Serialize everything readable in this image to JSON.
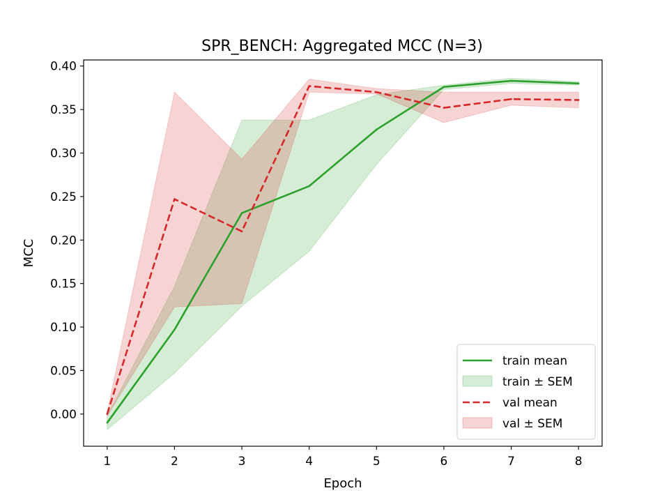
{
  "chart_data": {
    "type": "line",
    "title": "SPR_BENCH: Aggregated MCC (N=3)",
    "xlabel": "Epoch",
    "ylabel": "MCC",
    "x": [
      1,
      2,
      3,
      4,
      5,
      6,
      7,
      8
    ],
    "xlim": [
      0.65,
      8.35
    ],
    "ylim": [
      -0.037,
      0.407
    ],
    "x_ticks": [
      "1",
      "2",
      "3",
      "4",
      "5",
      "6",
      "7",
      "8"
    ],
    "y_ticks": [
      "0.00",
      "0.05",
      "0.10",
      "0.15",
      "0.20",
      "0.25",
      "0.30",
      "0.35",
      "0.40"
    ],
    "grid": false,
    "legend_position": "lower-right",
    "series": [
      {
        "name": "train mean",
        "band_name": "train ± SEM",
        "color": "#2ca02c",
        "line_style": "solid",
        "values": [
          -0.01,
          0.097,
          0.231,
          0.262,
          0.327,
          0.376,
          0.383,
          0.38
        ],
        "lower": [
          -0.018,
          0.047,
          0.124,
          0.187,
          0.287,
          0.373,
          0.38,
          0.378
        ],
        "upper": [
          -0.002,
          0.147,
          0.338,
          0.338,
          0.367,
          0.378,
          0.386,
          0.382
        ]
      },
      {
        "name": "val mean",
        "band_name": "val ± SEM",
        "color": "#d62728",
        "line_style": "dashed",
        "values": [
          0.0,
          0.247,
          0.21,
          0.377,
          0.37,
          0.352,
          0.362,
          0.361
        ],
        "lower": [
          -0.002,
          0.123,
          0.127,
          0.37,
          0.368,
          0.335,
          0.355,
          0.352
        ],
        "upper": [
          0.002,
          0.37,
          0.293,
          0.385,
          0.374,
          0.37,
          0.37,
          0.37
        ]
      }
    ]
  }
}
